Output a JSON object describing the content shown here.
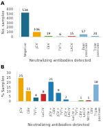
{
  "chart_data": [
    {
      "type": "bar",
      "title": "A",
      "categories": [
        "Negative",
        "JCV",
        "CEV",
        "TVTv",
        "LACV",
        "Dual\npositives",
        "Triple\npositives"
      ],
      "values": [
        534,
        106,
        19,
        6,
        15,
        57,
        20
      ],
      "colors": [
        "#1a6b8a",
        "#f0a500",
        "#5aab2e",
        "#1a6b8a",
        "#cc2222",
        "#7ab0d4",
        "#7ab0d4"
      ],
      "ylabel": "No. samples",
      "xlabel": "Neutralizing antibodies detected",
      "ylim": [
        0,
        640
      ],
      "yticks": [
        0,
        100,
        200,
        300,
        400,
        500,
        600
      ],
      "grid": false,
      "data_labels": true
    },
    {
      "type": "bar",
      "title": "B",
      "categories": [
        "JCV",
        "CEV",
        "TVTv",
        "LaCrV",
        "JCV +\nCEV",
        "JCV +\nTVTv",
        "JCV +\nLACrV",
        "LaCrV +\nTVTv",
        "CEV +\nLACrV",
        "Nitrite +\nCEV",
        "Triple\npositives"
      ],
      "values": [
        25,
        11,
        4,
        8,
        21,
        9,
        2,
        0,
        1,
        1,
        18
      ],
      "value_labels": [
        "25",
        "11",
        "4",
        "8",
        "21",
        "9",
        "2",
        null,
        "1",
        "1",
        "18"
      ],
      "colors": [
        "#f0a500",
        "#f0a500",
        "#1a6b8a",
        "#cc2222",
        "#1a7ab5",
        "#1a7ab5",
        "#1a7ab5",
        "#5aab2e",
        "#5aab2e",
        "#cc2222",
        "#7ab0d4"
      ],
      "ylabel": "% Samples",
      "xlabel": "Neutralizing antibodies detected",
      "ylim": [
        0,
        32
      ],
      "yticks": [
        0,
        5,
        10,
        15,
        20,
        25,
        30
      ],
      "grid": false,
      "data_labels": true
    }
  ]
}
